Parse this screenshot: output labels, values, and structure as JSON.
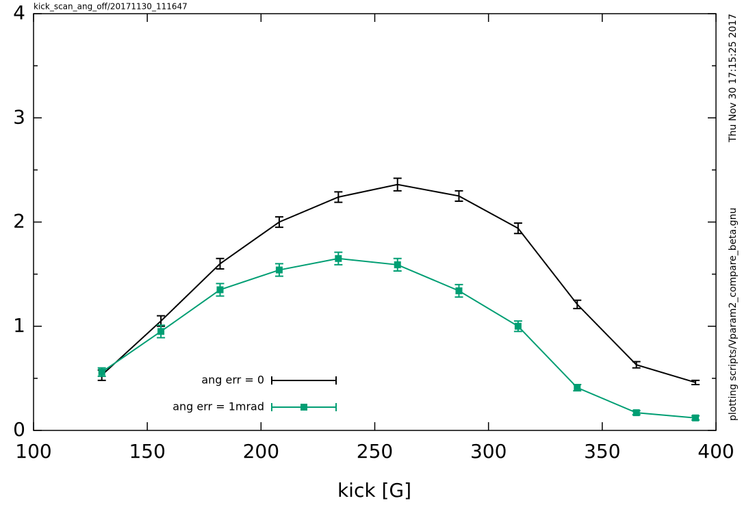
{
  "chart_data": {
    "type": "line",
    "header_text": "kick_scan_ang_off/20171130_111647",
    "timestamp": "Thu Nov 30 17:15:25 2017",
    "script_path": "plotting scripts/Vparam2_compare_beta.gnu",
    "x_label": "kick [G]",
    "x": [
      130,
      156,
      182,
      208,
      234,
      260,
      287,
      313,
      339,
      365,
      391
    ],
    "series": [
      {
        "name": "ang err = 0",
        "color": "#000000",
        "marker": false,
        "values": [
          0.53,
          1.05,
          1.6,
          2.0,
          2.24,
          2.36,
          2.25,
          1.94,
          1.21,
          0.63,
          0.46
        ],
        "errors": [
          0.05,
          0.05,
          0.05,
          0.05,
          0.05,
          0.06,
          0.05,
          0.05,
          0.04,
          0.03,
          0.02
        ]
      },
      {
        "name": "ang err = 1mrad",
        "color": "#009e73",
        "marker": true,
        "values": [
          0.56,
          0.95,
          1.35,
          1.54,
          1.65,
          1.59,
          1.34,
          1.0,
          0.41,
          0.17,
          0.12
        ],
        "errors": [
          0.04,
          0.06,
          0.06,
          0.06,
          0.06,
          0.06,
          0.06,
          0.05,
          0.03,
          0.02,
          0.02
        ]
      }
    ],
    "xlim": [
      100,
      400
    ],
    "xticks": [
      100,
      150,
      200,
      250,
      300,
      350,
      400
    ],
    "ylim": [
      0,
      4
    ],
    "yticks": [
      0,
      1,
      2,
      3,
      4
    ],
    "yminorticks": [
      0.5,
      1.5,
      2.5,
      3.5
    ]
  }
}
